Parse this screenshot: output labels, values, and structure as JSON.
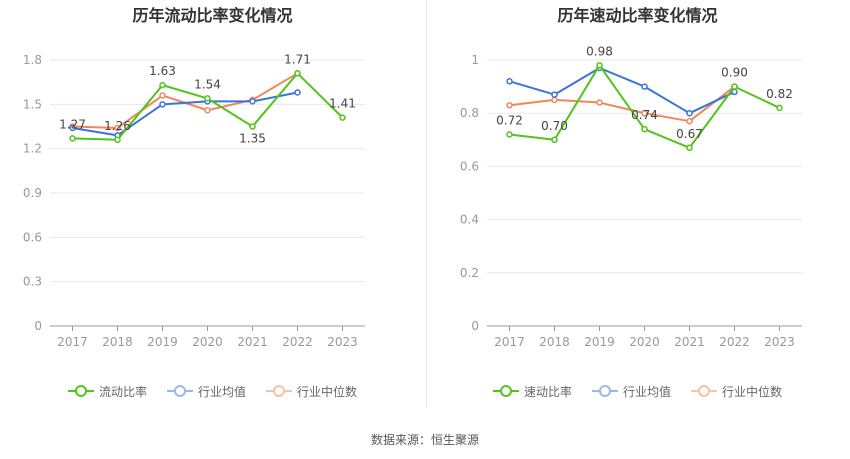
{
  "source_label": "数据来源：恒生聚源",
  "charts": [
    {
      "type": "line",
      "title": "历年流动比率变化情况",
      "categories": [
        "2017",
        "2018",
        "2019",
        "2020",
        "2021",
        "2022",
        "2023"
      ],
      "yticks": [
        "0",
        "0.3",
        "0.6",
        "0.9",
        "1.2",
        "1.5",
        "1.8"
      ],
      "ylim": [
        0,
        1.8
      ],
      "grid": true,
      "legend_position": "bottom",
      "series": [
        {
          "name": "流动比率",
          "color": "#52c41a",
          "labels": true,
          "values": [
            1.27,
            1.26,
            1.63,
            1.54,
            1.35,
            1.71,
            1.41
          ],
          "value_labels": [
            "1.27",
            "1.26",
            "1.63",
            "1.54",
            "1.35",
            "1.71",
            "1.41"
          ]
        },
        {
          "name": "行业均值",
          "color": "#3a75d6",
          "labels": false,
          "values": [
            1.34,
            1.29,
            1.5,
            1.52,
            1.52,
            1.58,
            null
          ]
        },
        {
          "name": "行业中位数",
          "color": "#f0875a",
          "labels": false,
          "values": [
            1.35,
            1.34,
            1.56,
            1.46,
            1.53,
            1.71,
            null
          ]
        }
      ]
    },
    {
      "type": "line",
      "title": "历年速动比率变化情况",
      "categories": [
        "2017",
        "2018",
        "2019",
        "2020",
        "2021",
        "2022",
        "2023"
      ],
      "yticks": [
        "0",
        "0.2",
        "0.4",
        "0.6",
        "0.8",
        "1"
      ],
      "ylim": [
        0,
        1.0
      ],
      "grid": true,
      "legend_position": "bottom",
      "series": [
        {
          "name": "速动比率",
          "color": "#52c41a",
          "labels": true,
          "values": [
            0.72,
            0.7,
            0.98,
            0.74,
            0.67,
            0.9,
            0.82
          ],
          "value_labels": [
            "0.72",
            "0.70",
            "0.98",
            "0.74",
            "0.67",
            "0.90",
            "0.82"
          ]
        },
        {
          "name": "行业均值",
          "color": "#3a75d6",
          "labels": false,
          "values": [
            0.92,
            0.87,
            0.97,
            0.9,
            0.8,
            0.88,
            null
          ]
        },
        {
          "name": "行业中位数",
          "color": "#f0875a",
          "labels": false,
          "values": [
            0.83,
            0.85,
            0.84,
            0.8,
            0.77,
            0.9,
            null
          ]
        }
      ]
    }
  ]
}
